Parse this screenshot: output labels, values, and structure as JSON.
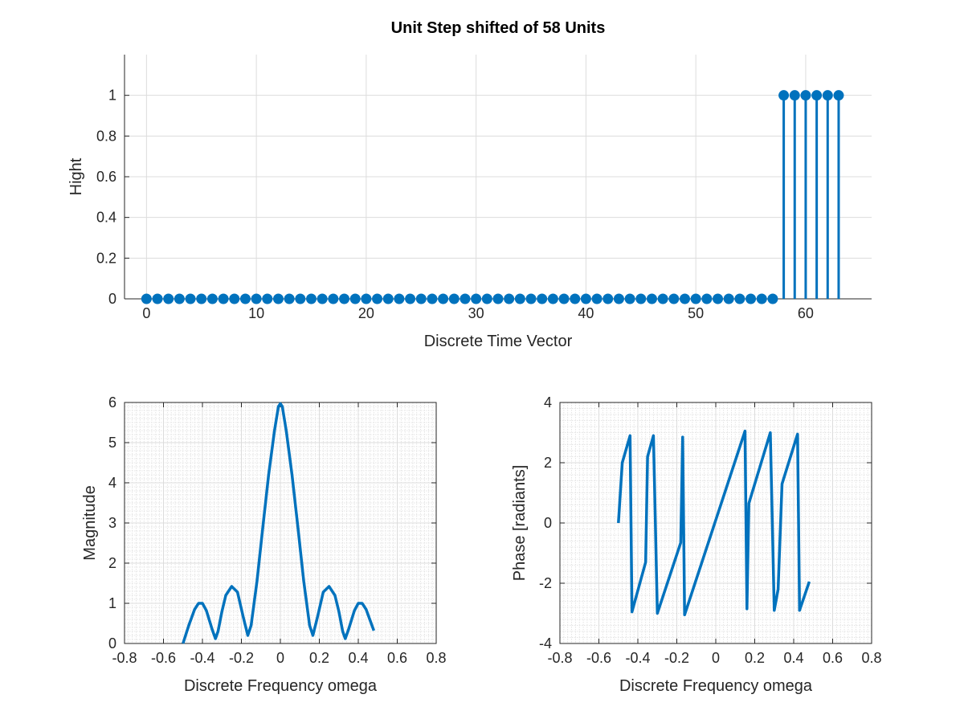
{
  "colors": {
    "series": "#0072bd",
    "axis": "#262626",
    "grid": "#dcdcdc"
  },
  "chart_data": [
    {
      "type": "stem",
      "title": "Unit Step shifted of 58 Units",
      "xlabel": "Discrete Time Vector",
      "ylabel": "Hight",
      "xlim": [
        -2,
        66
      ],
      "ylim": [
        0,
        1.2
      ],
      "xticks": [
        0,
        10,
        20,
        30,
        40,
        50,
        60
      ],
      "yticks": [
        0,
        0.2,
        0.4,
        0.6,
        0.8,
        1
      ],
      "ytick_labels": [
        "0",
        "0.2",
        "0.4",
        "0.6",
        "0.8",
        "1"
      ],
      "grid": "on",
      "x": [
        0,
        1,
        2,
        3,
        4,
        5,
        6,
        7,
        8,
        9,
        10,
        11,
        12,
        13,
        14,
        15,
        16,
        17,
        18,
        19,
        20,
        21,
        22,
        23,
        24,
        25,
        26,
        27,
        28,
        29,
        30,
        31,
        32,
        33,
        34,
        35,
        36,
        37,
        38,
        39,
        40,
        41,
        42,
        43,
        44,
        45,
        46,
        47,
        48,
        49,
        50,
        51,
        52,
        53,
        54,
        55,
        56,
        57,
        58,
        59,
        60,
        61,
        62,
        63
      ],
      "values": [
        0,
        0,
        0,
        0,
        0,
        0,
        0,
        0,
        0,
        0,
        0,
        0,
        0,
        0,
        0,
        0,
        0,
        0,
        0,
        0,
        0,
        0,
        0,
        0,
        0,
        0,
        0,
        0,
        0,
        0,
        0,
        0,
        0,
        0,
        0,
        0,
        0,
        0,
        0,
        0,
        0,
        0,
        0,
        0,
        0,
        0,
        0,
        0,
        0,
        0,
        0,
        0,
        0,
        0,
        0,
        0,
        0,
        0,
        1,
        1,
        1,
        1,
        1,
        1
      ]
    },
    {
      "type": "line",
      "title": "",
      "xlabel": "Discrete Frequency omega",
      "ylabel": "Magnitude",
      "xlim": [
        -0.8,
        0.8
      ],
      "ylim": [
        0,
        6
      ],
      "xticks": [
        -0.8,
        -0.6,
        -0.4,
        -0.2,
        0,
        0.2,
        0.4,
        0.6,
        0.8
      ],
      "xtick_labels": [
        "-0.8",
        "-0.6",
        "-0.4",
        "-0.2",
        "0",
        "0.2",
        "0.4",
        "0.6",
        "0.8"
      ],
      "yticks": [
        0,
        1,
        2,
        3,
        4,
        5,
        6
      ],
      "ytick_labels": [
        "0",
        "1",
        "2",
        "3",
        "4",
        "5",
        "6"
      ],
      "grid": "minor",
      "points": [
        [
          -0.5,
          0
        ],
        [
          -0.47,
          0.45
        ],
        [
          -0.44,
          0.85
        ],
        [
          -0.42,
          1.0
        ],
        [
          -0.4,
          1.0
        ],
        [
          -0.38,
          0.82
        ],
        [
          -0.35,
          0.35
        ],
        [
          -0.333,
          0.12
        ],
        [
          -0.32,
          0.3
        ],
        [
          -0.3,
          0.8
        ],
        [
          -0.28,
          1.2
        ],
        [
          -0.25,
          1.42
        ],
        [
          -0.22,
          1.28
        ],
        [
          -0.19,
          0.65
        ],
        [
          -0.167,
          0.2
        ],
        [
          -0.15,
          0.45
        ],
        [
          -0.12,
          1.55
        ],
        [
          -0.09,
          2.9
        ],
        [
          -0.06,
          4.2
        ],
        [
          -0.03,
          5.3
        ],
        [
          -0.01,
          5.9
        ],
        [
          0,
          5.97
        ],
        [
          0.01,
          5.9
        ],
        [
          0.03,
          5.3
        ],
        [
          0.06,
          4.2
        ],
        [
          0.09,
          2.9
        ],
        [
          0.12,
          1.55
        ],
        [
          0.15,
          0.45
        ],
        [
          0.167,
          0.2
        ],
        [
          0.19,
          0.65
        ],
        [
          0.22,
          1.28
        ],
        [
          0.25,
          1.42
        ],
        [
          0.28,
          1.2
        ],
        [
          0.3,
          0.8
        ],
        [
          0.32,
          0.3
        ],
        [
          0.333,
          0.12
        ],
        [
          0.35,
          0.35
        ],
        [
          0.38,
          0.82
        ],
        [
          0.4,
          1.0
        ],
        [
          0.42,
          1.0
        ],
        [
          0.44,
          0.85
        ],
        [
          0.47,
          0.45
        ],
        [
          0.48,
          0.32
        ]
      ]
    },
    {
      "type": "line",
      "title": "",
      "xlabel": "Discrete Frequency omega",
      "ylabel": "Phase [radiants]",
      "xlim": [
        -0.8,
        0.8
      ],
      "ylim": [
        -4,
        4
      ],
      "xticks": [
        -0.8,
        -0.6,
        -0.4,
        -0.2,
        0,
        0.2,
        0.4,
        0.6,
        0.8
      ],
      "xtick_labels": [
        "-0.8",
        "-0.6",
        "-0.4",
        "-0.2",
        "0",
        "0.2",
        "0.4",
        "0.6",
        "0.8"
      ],
      "yticks": [
        -4,
        -2,
        0,
        2,
        4
      ],
      "ytick_labels": [
        "-4",
        "-2",
        "0",
        "2",
        "4"
      ],
      "grid": "minor",
      "points": [
        [
          -0.5,
          0
        ],
        [
          -0.48,
          2.0
        ],
        [
          -0.44,
          2.9
        ],
        [
          -0.43,
          -2.95
        ],
        [
          -0.36,
          -1.3
        ],
        [
          -0.35,
          2.2
        ],
        [
          -0.32,
          2.9
        ],
        [
          -0.3,
          -3.0
        ],
        [
          -0.18,
          -0.65
        ],
        [
          -0.17,
          2.85
        ],
        [
          -0.16,
          -3.05
        ],
        [
          0.15,
          3.05
        ],
        [
          0.16,
          -2.85
        ],
        [
          0.17,
          0.65
        ],
        [
          0.28,
          3.0
        ],
        [
          0.3,
          -2.9
        ],
        [
          0.32,
          -2.2
        ],
        [
          0.34,
          1.3
        ],
        [
          0.42,
          2.95
        ],
        [
          0.43,
          -2.9
        ],
        [
          0.48,
          -1.95
        ]
      ]
    }
  ]
}
